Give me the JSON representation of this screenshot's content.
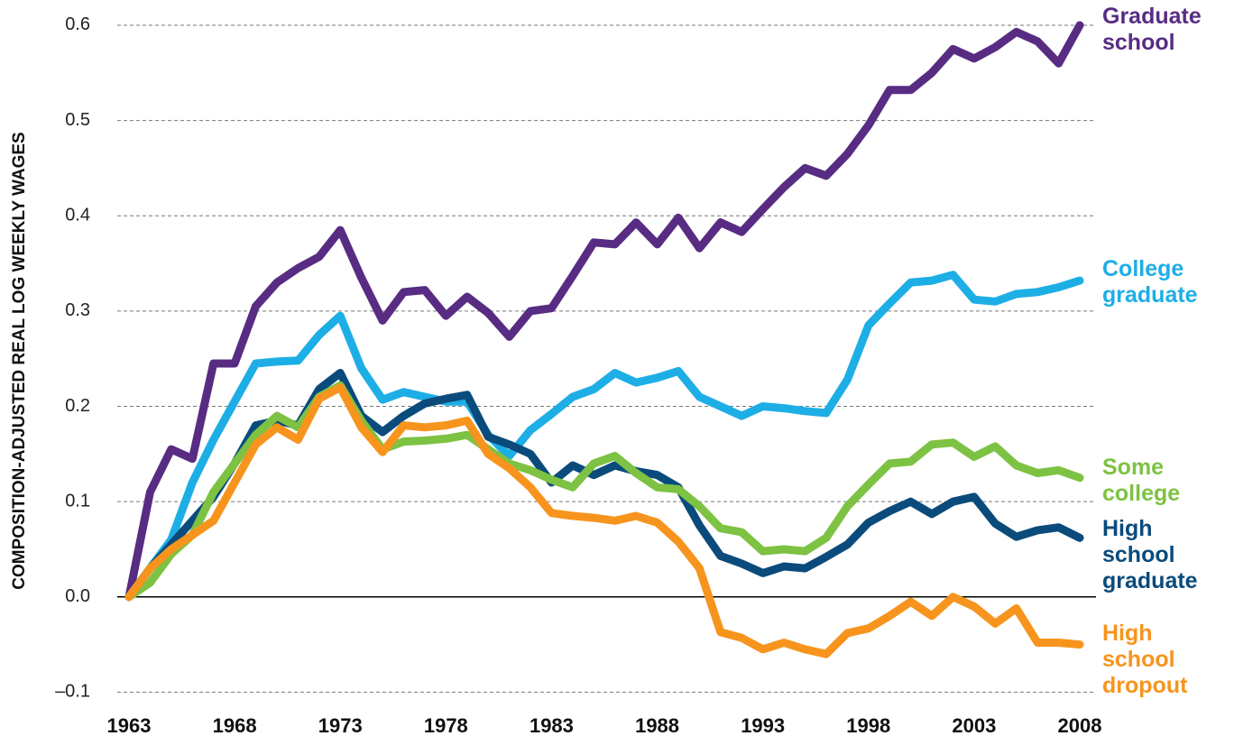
{
  "chart_data": {
    "type": "line",
    "y_axis_label": "COMPOSITION-ADJUSTED REAL LOG WEEKLY WAGES",
    "x": [
      1963,
      1964,
      1965,
      1966,
      1967,
      1968,
      1969,
      1970,
      1971,
      1972,
      1973,
      1974,
      1975,
      1976,
      1977,
      1978,
      1979,
      1980,
      1981,
      1982,
      1983,
      1984,
      1985,
      1986,
      1987,
      1988,
      1989,
      1990,
      1991,
      1992,
      1993,
      1994,
      1995,
      1996,
      1997,
      1998,
      1999,
      2000,
      2001,
      2002,
      2003,
      2004,
      2005,
      2006,
      2007,
      2008
    ],
    "xlim": [
      1963,
      2008
    ],
    "xticks": [
      1963,
      1968,
      1973,
      1978,
      1983,
      1988,
      1993,
      1998,
      2003,
      2008
    ],
    "ylim": [
      -0.11,
      0.61
    ],
    "yticks": [
      {
        "value": -0.1,
        "label": "–0.1"
      },
      {
        "value": 0,
        "label": "0.0"
      },
      0.1,
      0.2,
      0.3,
      0.4,
      0.5,
      0.6
    ],
    "grid": true,
    "series": [
      {
        "name": "Graduate school",
        "color": "#582c83",
        "values": [
          0,
          0.11,
          0.155,
          0.145,
          0.245,
          0.245,
          0.305,
          0.33,
          0.345,
          0.357,
          0.385,
          0.335,
          0.29,
          0.32,
          0.322,
          0.295,
          0.315,
          0.298,
          0.273,
          0.3,
          0.303,
          0.337,
          0.372,
          0.37,
          0.393,
          0.37,
          0.398,
          0.366,
          0.393,
          0.383,
          0.407,
          0.43,
          0.45,
          0.442,
          0.465,
          0.495,
          0.532,
          0.532,
          0.55,
          0.575,
          0.565,
          0.577,
          0.593,
          0.583,
          0.56,
          0.6
        ]
      },
      {
        "name": "College graduate",
        "color": "#1eaee6",
        "values": [
          0,
          0.03,
          0.06,
          0.12,
          0.165,
          0.205,
          0.245,
          0.247,
          0.248,
          0.275,
          0.295,
          0.24,
          0.207,
          0.215,
          0.21,
          0.205,
          0.205,
          0.17,
          0.148,
          0.175,
          0.192,
          0.21,
          0.218,
          0.235,
          0.225,
          0.23,
          0.237,
          0.21,
          0.2,
          0.19,
          0.2,
          0.198,
          0.195,
          0.193,
          0.228,
          0.285,
          0.308,
          0.33,
          0.332,
          0.338,
          0.312,
          0.31,
          0.318,
          0.32,
          0.325,
          0.332
        ]
      },
      {
        "name": "Some college",
        "color": "#7dc242",
        "values": [
          0,
          0.015,
          0.045,
          0.065,
          0.11,
          0.14,
          0.17,
          0.19,
          0.178,
          0.21,
          0.222,
          0.185,
          0.155,
          0.163,
          0.164,
          0.166,
          0.17,
          0.155,
          0.14,
          0.133,
          0.123,
          0.115,
          0.14,
          0.148,
          0.13,
          0.115,
          0.113,
          0.095,
          0.072,
          0.068,
          0.048,
          0.05,
          0.048,
          0.062,
          0.095,
          0.118,
          0.14,
          0.142,
          0.16,
          0.162,
          0.147,
          0.158,
          0.138,
          0.13,
          0.133,
          0.125
        ]
      },
      {
        "name": "High school graduate",
        "color": "#0a4b7c",
        "values": [
          0,
          0.03,
          0.055,
          0.08,
          0.105,
          0.14,
          0.18,
          0.185,
          0.18,
          0.218,
          0.235,
          0.19,
          0.173,
          0.19,
          0.203,
          0.208,
          0.212,
          0.168,
          0.16,
          0.15,
          0.12,
          0.138,
          0.128,
          0.138,
          0.132,
          0.128,
          0.115,
          0.075,
          0.043,
          0.035,
          0.025,
          0.032,
          0.03,
          0.042,
          0.055,
          0.078,
          0.09,
          0.1,
          0.087,
          0.1,
          0.105,
          0.077,
          0.063,
          0.07,
          0.073,
          0.062
        ]
      },
      {
        "name": "High school dropout",
        "color": "#f7941d",
        "values": [
          0,
          0.03,
          0.05,
          0.065,
          0.08,
          0.12,
          0.16,
          0.178,
          0.165,
          0.208,
          0.22,
          0.178,
          0.152,
          0.18,
          0.178,
          0.18,
          0.185,
          0.15,
          0.135,
          0.115,
          0.088,
          0.085,
          0.083,
          0.08,
          0.085,
          0.078,
          0.058,
          0.03,
          -0.037,
          -0.043,
          -0.055,
          -0.048,
          -0.055,
          -0.06,
          -0.038,
          -0.033,
          -0.02,
          -0.005,
          -0.02,
          0,
          -0.01,
          -0.028,
          -0.012,
          -0.048,
          -0.048,
          -0.05
        ]
      }
    ]
  }
}
